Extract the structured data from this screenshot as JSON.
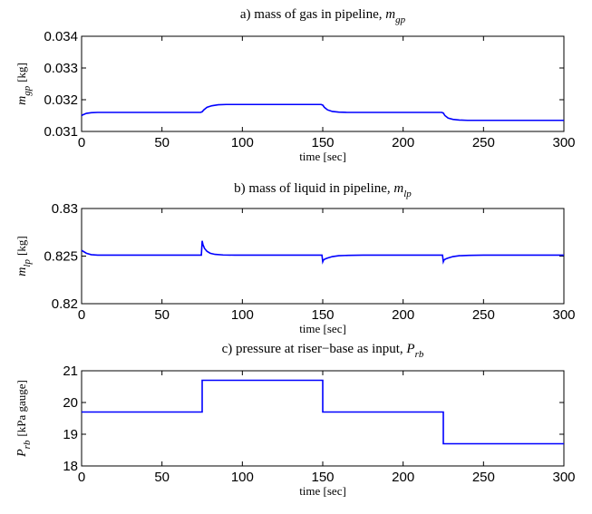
{
  "chart_data": [
    {
      "type": "line",
      "title": "a) mass of gas in pipeline, ",
      "title_symbol": "m",
      "title_sub": "gp",
      "xlabel": "time [sec]",
      "ylabel": "[kg]",
      "ylabel_symbol": "m",
      "ylabel_sub": "gp",
      "xlim": [
        0,
        300
      ],
      "ylim": [
        0.031,
        0.034
      ],
      "xticks": [
        0,
        50,
        100,
        150,
        200,
        250,
        300
      ],
      "xtick_labels": [
        "0",
        "50",
        "100",
        "150",
        "200",
        "250",
        "300"
      ],
      "yticks": [
        0.031,
        0.032,
        0.033,
        0.034
      ],
      "ytick_labels": [
        "0.031",
        "0.032",
        "0.033",
        "0.034"
      ],
      "grid": false,
      "series": [
        {
          "color": "#0000ff",
          "x": [
            0,
            1,
            3,
            6,
            10,
            20,
            40,
            74,
            75,
            76,
            78,
            81,
            85,
            90,
            100,
            149,
            150,
            151,
            153,
            156,
            160,
            165,
            175,
            224,
            225,
            226,
            228,
            231,
            235,
            240,
            250,
            300
          ],
          "y": [
            0.0315,
            0.03153,
            0.03157,
            0.03159,
            0.0316,
            0.0316,
            0.0316,
            0.0316,
            0.03162,
            0.03168,
            0.03176,
            0.03181,
            0.03184,
            0.03185,
            0.03185,
            0.03185,
            0.03183,
            0.03176,
            0.03168,
            0.03163,
            0.03161,
            0.0316,
            0.0316,
            0.0316,
            0.03158,
            0.0315,
            0.03142,
            0.03138,
            0.03136,
            0.03135,
            0.03135,
            0.03135
          ]
        }
      ]
    },
    {
      "type": "line",
      "title": "b) mass of liquid in pipeline, ",
      "title_symbol": "m",
      "title_sub": "lp",
      "xlabel": "time [sec]",
      "ylabel": "[kg]",
      "ylabel_symbol": "m",
      "ylabel_sub": "lp",
      "xlim": [
        0,
        300
      ],
      "ylim": [
        0.82,
        0.83
      ],
      "xticks": [
        0,
        50,
        100,
        150,
        200,
        250,
        300
      ],
      "xtick_labels": [
        "0",
        "50",
        "100",
        "150",
        "200",
        "250",
        "300"
      ],
      "yticks": [
        0.82,
        0.825,
        0.83
      ],
      "ytick_labels": [
        "0.82",
        "0.825",
        "0.83"
      ],
      "grid": false,
      "series": [
        {
          "color": "#0000ff",
          "x": [
            0,
            1,
            3,
            6,
            10,
            20,
            74.5,
            75,
            75.5,
            76.5,
            78,
            80,
            83,
            88,
            95,
            149.5,
            150,
            150.5,
            151.5,
            153,
            156,
            160,
            166,
            175,
            224.5,
            225,
            225.5,
            226.5,
            228,
            231,
            235,
            241,
            250,
            300
          ],
          "y": [
            0.8256,
            0.8255,
            0.8253,
            0.82515,
            0.8251,
            0.8251,
            0.8251,
            0.8266,
            0.8262,
            0.8258,
            0.8255,
            0.8253,
            0.82518,
            0.82512,
            0.8251,
            0.8251,
            0.8244,
            0.8246,
            0.8247,
            0.8248,
            0.82495,
            0.82504,
            0.82508,
            0.8251,
            0.8251,
            0.8244,
            0.8246,
            0.8247,
            0.8248,
            0.82495,
            0.82504,
            0.82508,
            0.8251,
            0.8251
          ]
        }
      ]
    },
    {
      "type": "line",
      "title": "c) pressure at riser−base as input, ",
      "title_symbol": "P",
      "title_sub": "rb",
      "xlabel": "time [sec]",
      "ylabel": "[kPa gauge]",
      "ylabel_symbol": "P",
      "ylabel_sub": "rb",
      "xlim": [
        0,
        300
      ],
      "ylim": [
        18,
        21
      ],
      "xticks": [
        0,
        50,
        100,
        150,
        200,
        250,
        300
      ],
      "xtick_labels": [
        "0",
        "50",
        "100",
        "150",
        "200",
        "250",
        "300"
      ],
      "yticks": [
        18,
        19,
        20,
        21
      ],
      "ytick_labels": [
        "18",
        "19",
        "20",
        "21"
      ],
      "grid": false,
      "series": [
        {
          "color": "#0000ff",
          "x": [
            0,
            75,
            75,
            150,
            150,
            225,
            225,
            300
          ],
          "y": [
            19.7,
            19.7,
            20.7,
            20.7,
            19.7,
            19.7,
            18.7,
            18.7
          ]
        }
      ]
    }
  ]
}
